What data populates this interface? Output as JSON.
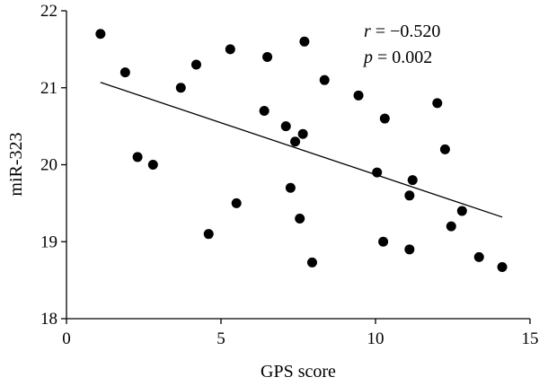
{
  "chart_data": {
    "type": "scatter",
    "xlabel": "GPS score",
    "ylabel": "miR-323",
    "xlim": [
      0,
      15
    ],
    "ylim": [
      18,
      22
    ],
    "xticks": [
      0,
      5,
      10,
      15
    ],
    "yticks": [
      18,
      19,
      20,
      21,
      22
    ],
    "grid": false,
    "annotation": {
      "r_symbol": "r",
      "r_value": " = −0.520",
      "p_symbol": "p",
      "p_value": " = 0.002"
    },
    "trendline": {
      "x": [
        1.1,
        14.1
      ],
      "y": [
        21.07,
        19.32
      ]
    },
    "points": [
      {
        "x": 1.1,
        "y": 21.7
      },
      {
        "x": 1.9,
        "y": 21.2
      },
      {
        "x": 2.3,
        "y": 20.1
      },
      {
        "x": 2.8,
        "y": 20.0
      },
      {
        "x": 3.7,
        "y": 21.0
      },
      {
        "x": 4.2,
        "y": 21.3
      },
      {
        "x": 4.6,
        "y": 19.1
      },
      {
        "x": 5.3,
        "y": 21.5
      },
      {
        "x": 5.5,
        "y": 19.5
      },
      {
        "x": 6.4,
        "y": 20.7
      },
      {
        "x": 6.5,
        "y": 21.4
      },
      {
        "x": 7.1,
        "y": 20.5
      },
      {
        "x": 7.25,
        "y": 19.7
      },
      {
        "x": 7.4,
        "y": 20.3
      },
      {
        "x": 7.55,
        "y": 19.3
      },
      {
        "x": 7.65,
        "y": 20.4
      },
      {
        "x": 7.7,
        "y": 21.6
      },
      {
        "x": 7.95,
        "y": 18.73
      },
      {
        "x": 8.35,
        "y": 21.1
      },
      {
        "x": 9.45,
        "y": 20.9
      },
      {
        "x": 10.05,
        "y": 19.9
      },
      {
        "x": 10.25,
        "y": 19.0
      },
      {
        "x": 10.3,
        "y": 20.6
      },
      {
        "x": 11.1,
        "y": 19.6
      },
      {
        "x": 11.2,
        "y": 19.8
      },
      {
        "x": 11.1,
        "y": 18.9
      },
      {
        "x": 12.0,
        "y": 20.8
      },
      {
        "x": 12.25,
        "y": 20.2
      },
      {
        "x": 12.45,
        "y": 19.2
      },
      {
        "x": 12.8,
        "y": 19.4
      },
      {
        "x": 13.35,
        "y": 18.8
      },
      {
        "x": 14.1,
        "y": 18.67
      }
    ]
  }
}
